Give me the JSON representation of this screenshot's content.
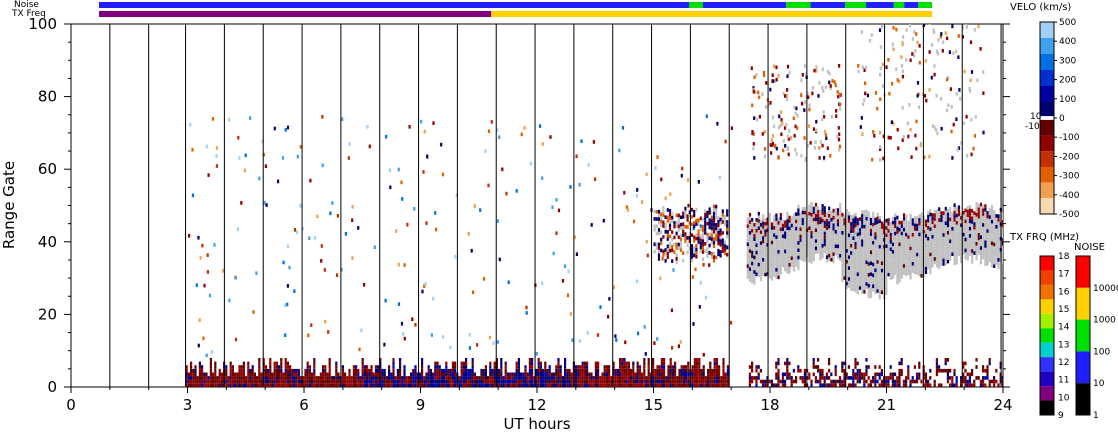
{
  "chart_data": {
    "type": "heatmap",
    "xlabel": "UT hours",
    "ylabel": "Range Gate",
    "xlim": [
      0,
      24
    ],
    "ylim": [
      0,
      100
    ],
    "x_ticks": [
      "0",
      "3",
      "6",
      "9",
      "12",
      "15",
      "18",
      "21",
      "24"
    ],
    "y_ticks": [
      "0",
      "20",
      "40",
      "60",
      "80",
      "100"
    ],
    "scan_boundaries_hours": [
      1,
      2,
      2.95,
      3.95,
      4.95,
      5.95,
      6.95,
      7.95,
      8.95,
      9.95,
      10.95,
      11.95,
      12.95,
      13.95,
      14.95,
      15.95,
      16.95,
      17.95,
      18.95,
      19.95,
      20.95,
      21.95,
      22.95,
      23.95
    ],
    "ground_scatter_color": "#c0c0c0",
    "velocity_scale": {
      "title": "VELO (km/s)",
      "min": -500,
      "max": 500,
      "labels": [
        "500",
        "400",
        "300",
        "200",
        "100",
        "0",
        "-100",
        "-200",
        "-300",
        "-400",
        "-500"
      ],
      "label_values": [
        500,
        400,
        300,
        200,
        100,
        0,
        -100,
        -200,
        -300,
        -400,
        -500
      ],
      "zero_marks": [
        "10",
        "-10"
      ],
      "colors_positive_low_to_high": [
        "#000070",
        "#0000a0",
        "#0030d0",
        "#0070e0",
        "#40a0f0",
        "#a0d0f8"
      ],
      "colors_negative_low_to_high": [
        "#f8d8b0",
        "#f0a050",
        "#e06000",
        "#c03000",
        "#900000",
        "#600000"
      ]
    },
    "tx_freq_scale": {
      "title": "TX FRQ (MHz)",
      "labels": [
        "18",
        "17",
        "16",
        "15",
        "14",
        "13",
        "12",
        "11",
        "10",
        "9"
      ],
      "colors": [
        "#ff0000",
        "#f04000",
        "#f07000",
        "#ffd000",
        "#a0f000",
        "#00e000",
        "#00d0d0",
        "#3030ff",
        "#2000c0",
        "#800080",
        "#000000"
      ]
    },
    "noise_scale": {
      "title": "NOISE",
      "labels": [
        "10000",
        "1000",
        "100",
        "10",
        "1"
      ],
      "colors": [
        "#ff0000",
        "#ffd000",
        "#00e000",
        "#2020ff",
        "#000000"
      ]
    },
    "status_bars": {
      "noise_label": "Noise",
      "txfreq_label": "TX Freq",
      "data_start_hours": 0,
      "noise_segments": [
        {
          "start": 0,
          "end": 17.0,
          "color": "#2020ff"
        },
        {
          "start": 17.0,
          "end": 17.4,
          "color": "#00e000"
        },
        {
          "start": 17.4,
          "end": 19.8,
          "color": "#2020ff"
        },
        {
          "start": 19.8,
          "end": 20.5,
          "color": "#00e000"
        },
        {
          "start": 20.5,
          "end": 21.5,
          "color": "#2020ff"
        },
        {
          "start": 21.5,
          "end": 22.1,
          "color": "#00e000"
        },
        {
          "start": 22.1,
          "end": 22.9,
          "color": "#2020ff"
        },
        {
          "start": 22.9,
          "end": 23.2,
          "color": "#00e000"
        },
        {
          "start": 23.2,
          "end": 23.6,
          "color": "#2020ff"
        },
        {
          "start": 23.6,
          "end": 24,
          "color": "#00e000"
        }
      ],
      "txfreq_segments": [
        {
          "start": 0,
          "end": 11.3,
          "color": "#800080"
        },
        {
          "start": 11.3,
          "end": 24,
          "color": "#ffd000"
        }
      ]
    },
    "regions": {
      "near_range_dense": {
        "start": 2.95,
        "end": 24,
        "gate_min": 0,
        "gate_max": 8
      },
      "blue_band_hours": [
        7.5,
        13.0
      ],
      "scatter_band_16h": {
        "start": 15.0,
        "end": 16.9,
        "gate_min": 33,
        "gate_max": 50
      },
      "ground_scatter_band": {
        "start": 17.4,
        "end": 24,
        "gate_min": 25,
        "gate_max": 50
      },
      "far_echo_patches": [
        {
          "start": 17.5,
          "end": 19.8,
          "gate_min": 62,
          "gate_max": 88
        },
        {
          "start": 20.2,
          "end": 23.5,
          "gate_min": 62,
          "gate_max": 100
        }
      ],
      "data_gap": {
        "start": 16.9,
        "end": 17.4
      }
    }
  }
}
